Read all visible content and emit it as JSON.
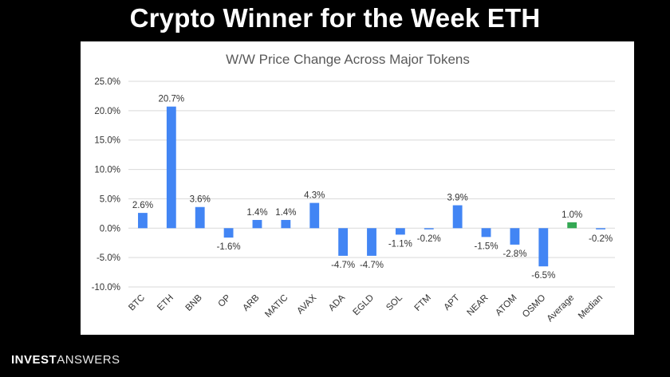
{
  "header": {
    "title": "Crypto Winner for the Week ETH"
  },
  "brand": {
    "part1": "INVEST",
    "part2": "ANSWERS"
  },
  "colors": {
    "bar": "#4285F4",
    "highlight": "#34A853",
    "grid": "#d9d9d9",
    "text": "#333333"
  },
  "chart_data": {
    "type": "bar",
    "title": "W/W Price Change Across Major Tokens",
    "xlabel": "",
    "ylabel": "",
    "categories": [
      "BTC",
      "ETH",
      "BNB",
      "OP",
      "ARB",
      "MATIC",
      "AVAX",
      "ADA",
      "EGLD",
      "SOL",
      "FTM",
      "APT",
      "NEAR",
      "ATOM",
      "OSMO",
      "Average",
      "Median"
    ],
    "values": [
      2.6,
      20.7,
      3.6,
      -1.6,
      1.4,
      1.4,
      4.3,
      -4.7,
      -4.7,
      -1.1,
      -0.2,
      3.9,
      -1.5,
      -2.8,
      -6.5,
      1.0,
      -0.2
    ],
    "labels": [
      "2.6%",
      "20.7%",
      "3.6%",
      "-1.6%",
      "1.4%",
      "1.4%",
      "4.3%",
      "-4.7%",
      "-4.7%",
      "-1.1%",
      "-0.2%",
      "3.9%",
      "-1.5%",
      "-2.8%",
      "-6.5%",
      "1.0%",
      "-0.2%"
    ],
    "highlight": [
      "Average"
    ],
    "ylim": [
      -10,
      25
    ],
    "yticks": [
      25,
      20,
      15,
      10,
      5,
      0,
      -5,
      -10
    ],
    "ytick_labels": [
      "25.0%",
      "20.0%",
      "15.0%",
      "10.0%",
      "5.0%",
      "0.0%",
      "-5.0%",
      "-10.0%"
    ],
    "grid": true,
    "legend": "none"
  }
}
